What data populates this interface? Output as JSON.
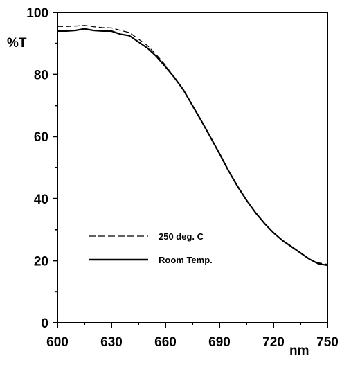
{
  "chart_data": {
    "type": "line",
    "xlabel": "nm",
    "ylabel": "%T",
    "xlim": [
      600,
      750
    ],
    "ylim": [
      0,
      100
    ],
    "x_ticks": [
      600,
      630,
      660,
      690,
      720,
      750
    ],
    "y_ticks": [
      0,
      20,
      40,
      60,
      80,
      100
    ],
    "grid": false,
    "legend_position": "lower-left",
    "series": [
      {
        "name": "250 deg. C",
        "style": "dashed",
        "color": "#000000",
        "x": [
          600,
          605,
          610,
          615,
          620,
          625,
          630,
          635,
          640,
          645,
          650,
          655,
          660,
          665,
          670,
          675,
          680,
          685,
          690,
          695,
          700,
          705,
          710,
          715,
          720,
          725,
          730,
          735,
          740,
          745,
          750
        ],
        "y": [
          95.5,
          95.5,
          95.6,
          95.8,
          95.4,
          95.1,
          95.0,
          94.2,
          93.5,
          91.4,
          89.3,
          86.3,
          83.0,
          79.0,
          75.0,
          70.0,
          65.0,
          59.8,
          54.5,
          49.0,
          44.0,
          39.5,
          35.5,
          32.0,
          29.0,
          26.5,
          24.5,
          22.5,
          20.5,
          19.3,
          18.8
        ]
      },
      {
        "name": "Room Temp.",
        "style": "solid",
        "color": "#000000",
        "x": [
          600,
          605,
          610,
          615,
          620,
          625,
          630,
          635,
          640,
          645,
          650,
          655,
          660,
          665,
          670,
          675,
          680,
          685,
          690,
          695,
          700,
          705,
          710,
          715,
          720,
          725,
          730,
          735,
          740,
          745,
          750
        ],
        "y": [
          94.0,
          94.0,
          94.2,
          94.7,
          94.2,
          94.0,
          94.0,
          93.0,
          92.5,
          90.5,
          88.5,
          85.8,
          82.5,
          79.0,
          75.0,
          70.0,
          65.0,
          59.8,
          54.5,
          49.0,
          44.0,
          39.5,
          35.5,
          32.0,
          29.0,
          26.5,
          24.5,
          22.5,
          20.5,
          19.0,
          18.5
        ]
      }
    ]
  }
}
